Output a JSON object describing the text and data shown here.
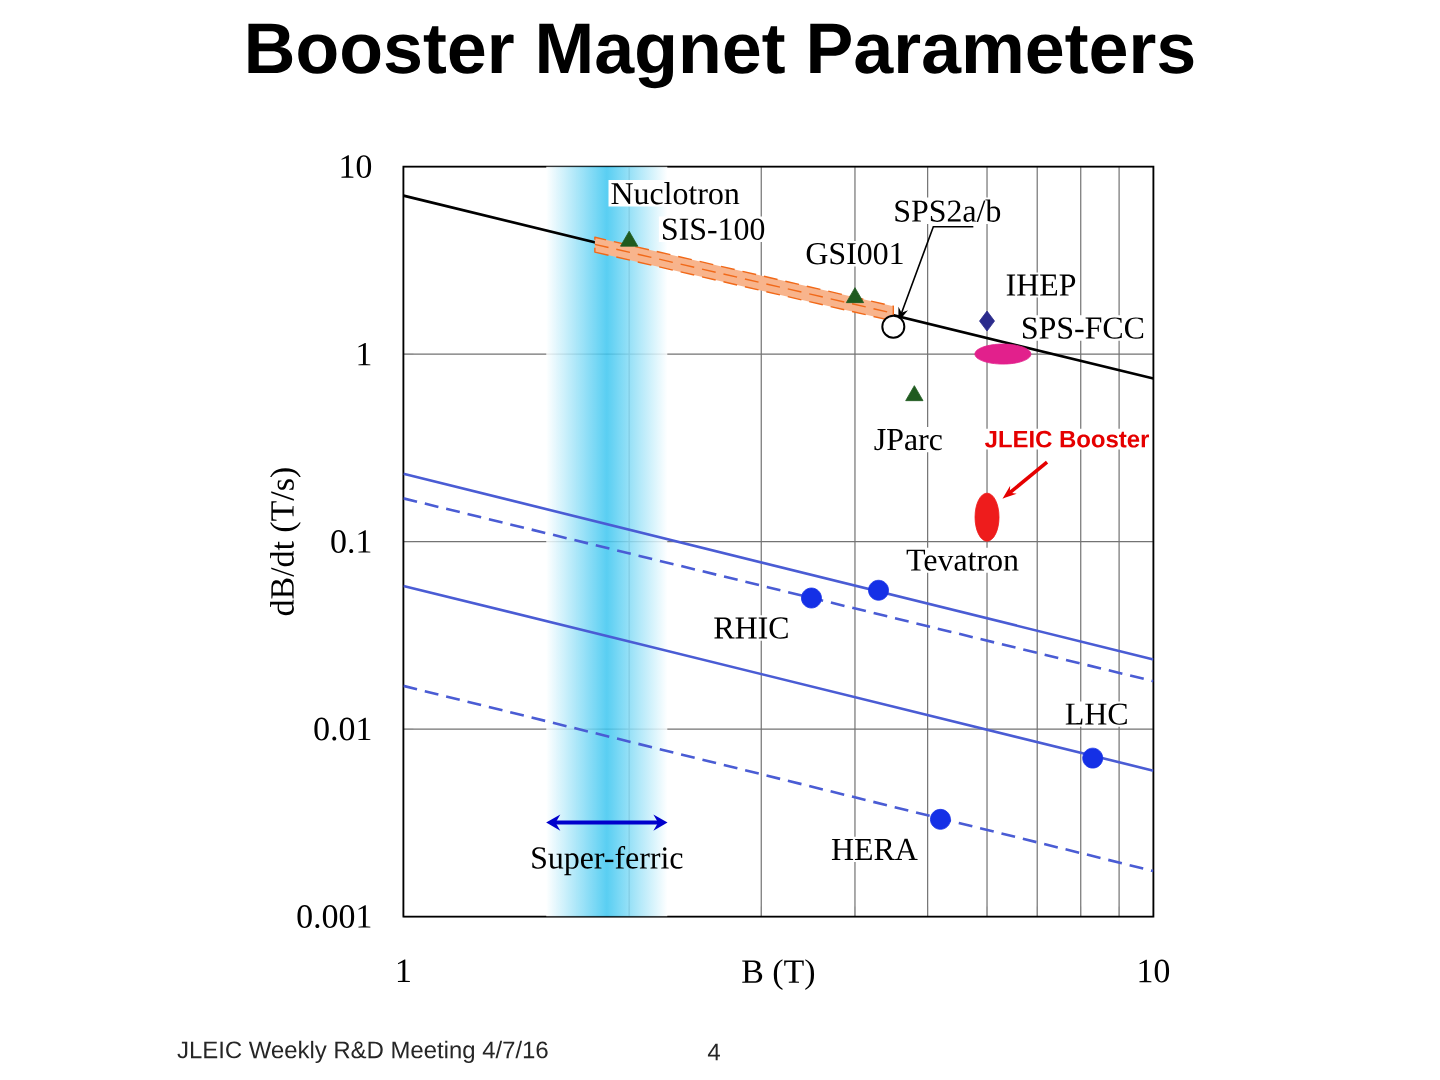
{
  "chart_data": {
    "type": "scatter",
    "title": "Booster Magnet Parameters",
    "xlabel": "B (T)",
    "ylabel": "dB/dt (T/s)",
    "log": "xy",
    "xlim": [
      1,
      10
    ],
    "ylim": [
      0.001,
      10
    ],
    "xticks": [
      1,
      {
        "value": 2,
        "label": null
      },
      {
        "value": 3,
        "label": null
      },
      {
        "value": 4,
        "label": null
      },
      {
        "value": 5,
        "label": null
      },
      {
        "value": 6,
        "label": null
      },
      {
        "value": 7,
        "label": null
      },
      {
        "value": 8,
        "label": null
      },
      {
        "value": 9,
        "label": null
      },
      10
    ],
    "yticks": [
      0.001,
      0.01,
      0.1,
      1,
      10
    ],
    "grid": true,
    "series": [
      {
        "type": "line",
        "color": "#000000",
        "line_style": "solid",
        "x": [
          1,
          10
        ],
        "values": [
          7.0,
          0.74
        ]
      },
      {
        "type": "line",
        "color": "#4a5cd4",
        "line_style": "solid",
        "x": [
          1,
          10
        ],
        "values": [
          0.23,
          0.0235
        ]
      },
      {
        "type": "line",
        "color": "#4a5cd4",
        "line_style": "dashed",
        "x": [
          1,
          10
        ],
        "values": [
          0.17,
          0.018
        ]
      },
      {
        "type": "line",
        "color": "#4a5cd4",
        "line_style": "solid",
        "x": [
          1,
          10
        ],
        "values": [
          0.058,
          0.006
        ]
      },
      {
        "type": "line",
        "color": "#4a5cd4",
        "line_style": "dashed",
        "x": [
          1,
          10
        ],
        "values": [
          0.017,
          0.00175
        ]
      },
      {
        "type": "line",
        "color": "#f16919",
        "line_style": "dashed",
        "x": [
          1.8,
          4.5
        ],
        "values": [
          3.85,
          1.65
        ],
        "lower": [
          3.5,
          1.5
        ],
        "upper": [
          4.2,
          1.8
        ]
      },
      {
        "color": "#1f5a1f",
        "marker": "triangle",
        "x": [
          2,
          4,
          4.8
        ],
        "values": [
          4,
          2,
          0.6
        ]
      },
      {
        "color": "#000000",
        "colors": [
          "#ffffff"
        ],
        "marker": "circle",
        "x": [
          4.5
        ],
        "values": [
          1.4
        ]
      },
      {
        "color": "#2b2b8c",
        "marker": "diamond",
        "x": [
          6
        ],
        "values": [
          1.5
        ]
      },
      {
        "color": "#e2208c",
        "marker": "circle",
        "x": [
          6.3
        ],
        "values": [
          1.0
        ]
      },
      {
        "color": "#ee1c1c",
        "marker": "circle",
        "x": [
          6.0
        ],
        "values": [
          0.135
        ]
      },
      {
        "color": "#1530e6",
        "marker": "circle",
        "x": [
          3.5,
          4.3,
          5.2,
          8.3
        ],
        "values": [
          0.05,
          0.055,
          0.0033,
          0.007
        ]
      }
    ],
    "bands": [
      {
        "axis": "x",
        "from": 1.55,
        "to": 2.25,
        "label": "Super-ferric",
        "color": "#3cc6f0"
      }
    ],
    "annotations": [
      {
        "text": "Nuclotron",
        "x": 2,
        "y": 4
      },
      {
        "text": "SIS-100",
        "x": 2,
        "y": 4
      },
      {
        "text": "GSI001",
        "x": 4,
        "y": 2
      },
      {
        "text": "SPS2a/b",
        "x": 4.5,
        "y": 1.4
      },
      {
        "text": "IHEP",
        "x": 6,
        "y": 1.5
      },
      {
        "text": "SPS-FCC",
        "x": 6.3,
        "y": 1.0
      },
      {
        "text": "JParc",
        "x": 4.8,
        "y": 0.6
      },
      {
        "text": "JLEIC Booster",
        "x": 6.0,
        "y": 0.135
      },
      {
        "text": "Tevatron",
        "x": 4.3,
        "y": 0.055
      },
      {
        "text": "RHIC",
        "x": 3.5,
        "y": 0.05
      },
      {
        "text": "LHC",
        "x": 8.3,
        "y": 0.007
      },
      {
        "text": "HERA",
        "x": 5.2,
        "y": 0.0033
      },
      "JLEIC Weekly R&D Meeting 4/7/16",
      "4"
    ]
  }
}
